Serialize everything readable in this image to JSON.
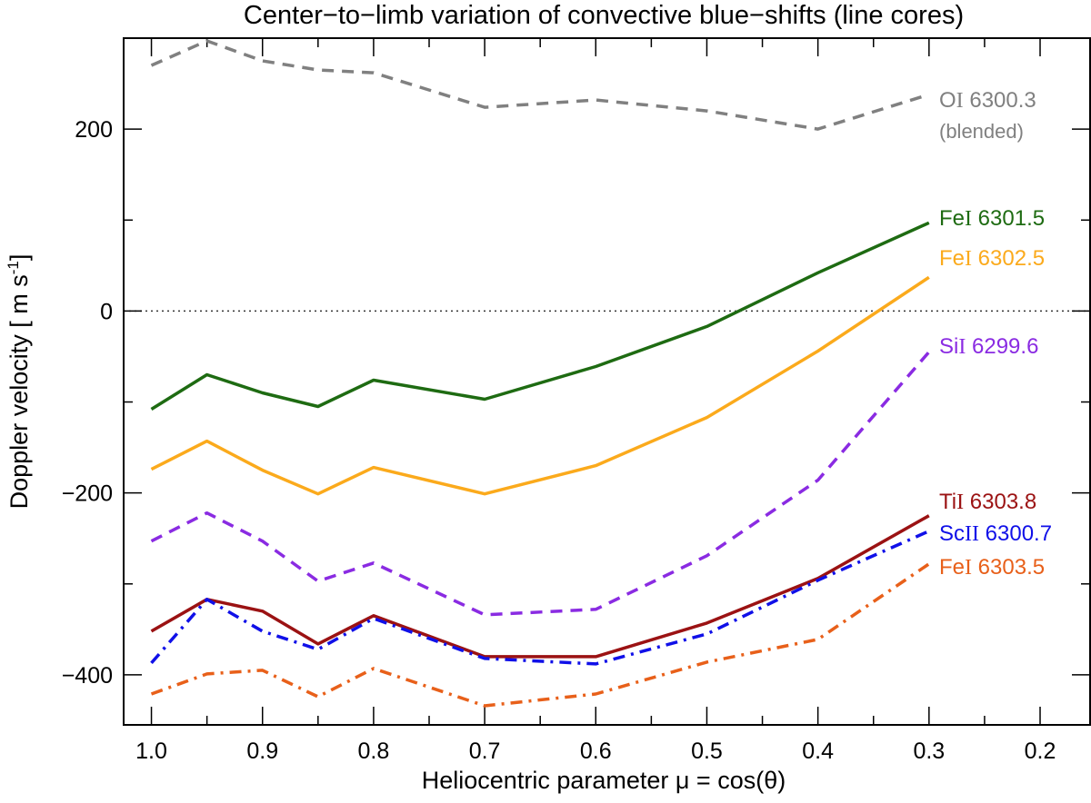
{
  "chart_data": {
    "type": "line",
    "title": "Center−to−limb variation of convective blue−shifts (line cores)",
    "xlabel": "Heliocentric parameter μ = cos(θ)",
    "ylabel": "Doppler velocity [ m s⁻¹]",
    "xlim": [
      1.025,
      0.155
    ],
    "ylim": [
      -455,
      300
    ],
    "x_reversed": true,
    "x_ticks": [
      1.0,
      0.9,
      0.8,
      0.7,
      0.6,
      0.5,
      0.4,
      0.3,
      0.2
    ],
    "x_tick_labels": [
      "1.0",
      "0.9",
      "0.8",
      "0.7",
      "0.6",
      "0.5",
      "0.4",
      "0.3",
      "0.2"
    ],
    "x_minor_ticks": [
      0.95,
      0.85,
      0.75,
      0.65,
      0.55,
      0.45,
      0.35,
      0.25
    ],
    "y_ticks": [
      -400,
      -200,
      0,
      200
    ],
    "y_tick_labels": [
      "−400",
      "−200",
      "0",
      "200"
    ],
    "y_minor_ticks": [
      -300,
      -100,
      100
    ],
    "zero_line": true,
    "grid": false,
    "legend": "inline labels at right end of each line",
    "series": [
      {
        "name": "OI 6300.3",
        "label_main": "O",
        "label_roman": "I",
        "label_wl": "6300.3",
        "sublabel": "(blended)",
        "color": "#808080",
        "dash": "dashed",
        "x": [
          1.0,
          0.95,
          0.9,
          0.85,
          0.8,
          0.7,
          0.6,
          0.5,
          0.4,
          0.3
        ],
        "y": [
          270,
          297,
          275,
          265,
          262,
          224,
          232,
          220,
          200,
          238
        ]
      },
      {
        "name": "FeI 6301.5",
        "label_main": "Fe",
        "label_roman": "I",
        "label_wl": "6301.5",
        "color": "#1e6b12",
        "dash": "solid",
        "x": [
          1.0,
          0.95,
          0.9,
          0.85,
          0.8,
          0.7,
          0.6,
          0.5,
          0.4,
          0.3
        ],
        "y": [
          -108,
          -70,
          -90,
          -105,
          -76,
          -97,
          -61,
          -17,
          42,
          97
        ]
      },
      {
        "name": "FeI 6302.5",
        "label_main": "Fe",
        "label_roman": "I",
        "label_wl": "6302.5",
        "color": "#fbaa1c",
        "dash": "solid",
        "x": [
          1.0,
          0.95,
          0.9,
          0.85,
          0.8,
          0.7,
          0.6,
          0.5,
          0.4,
          0.3
        ],
        "y": [
          -174,
          -143,
          -175,
          -201,
          -172,
          -201,
          -170,
          -117,
          -44,
          37
        ]
      },
      {
        "name": "SiI 6299.6",
        "label_main": "Si",
        "label_roman": "I",
        "label_wl": "6299.6",
        "color": "#8a2be2",
        "dash": "dashed",
        "x": [
          1.0,
          0.95,
          0.9,
          0.85,
          0.8,
          0.7,
          0.6,
          0.5,
          0.4,
          0.3
        ],
        "y": [
          -253,
          -222,
          -253,
          -297,
          -277,
          -334,
          -328,
          -269,
          -186,
          -45
        ]
      },
      {
        "name": "TiI 6303.8",
        "label_main": "Ti",
        "label_roman": "I",
        "label_wl": "6303.8",
        "color": "#9b1213",
        "dash": "solid",
        "x": [
          1.0,
          0.95,
          0.9,
          0.85,
          0.8,
          0.7,
          0.6,
          0.5,
          0.4,
          0.3
        ],
        "y": [
          -352,
          -317,
          -330,
          -366,
          -335,
          -380,
          -380,
          -343,
          -294,
          -225
        ]
      },
      {
        "name": "ScII 6300.7",
        "label_main": "Sc",
        "label_roman": "II",
        "label_wl": "6300.7",
        "color": "#1010e8",
        "dash": "dashdot",
        "x": [
          1.0,
          0.95,
          0.9,
          0.85,
          0.8,
          0.7,
          0.6,
          0.5,
          0.4,
          0.3
        ],
        "y": [
          -387,
          -317,
          -352,
          -372,
          -338,
          -382,
          -388,
          -355,
          -296,
          -242
        ]
      },
      {
        "name": "FeI 6303.5",
        "label_main": "Fe",
        "label_roman": "I",
        "label_wl": "6303.5",
        "color": "#e8601a",
        "dash": "dashdot",
        "x": [
          1.0,
          0.95,
          0.9,
          0.85,
          0.8,
          0.7,
          0.6,
          0.5,
          0.4,
          0.3
        ],
        "y": [
          -421,
          -399,
          -395,
          -424,
          -393,
          -434,
          -421,
          -386,
          -361,
          -278
        ]
      }
    ]
  }
}
